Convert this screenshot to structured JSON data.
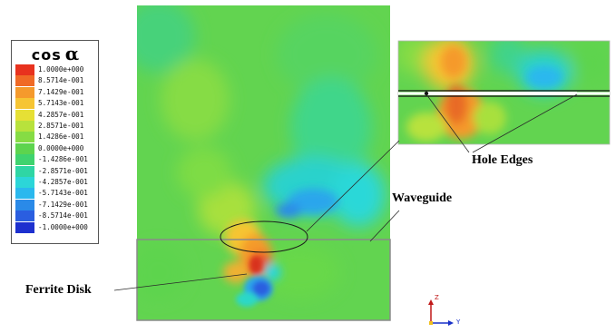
{
  "legend": {
    "title": "cos",
    "title_symbol": "α",
    "entries": [
      {
        "label": "1.0000e+000",
        "color": "#e8321e"
      },
      {
        "label": "8.5714e-001",
        "color": "#f06a26"
      },
      {
        "label": "7.1429e-001",
        "color": "#f59a2c"
      },
      {
        "label": "5.7143e-001",
        "color": "#f6c533"
      },
      {
        "label": "4.2857e-001",
        "color": "#e6e035"
      },
      {
        "label": "2.8571e-001",
        "color": "#b8e23c"
      },
      {
        "label": "1.4286e-001",
        "color": "#86dc44"
      },
      {
        "label": "0.0000e+000",
        "color": "#5dd44e"
      },
      {
        "label": "-1.4286e-001",
        "color": "#3fd36e"
      },
      {
        "label": "-2.8571e-001",
        "color": "#2fd6a4"
      },
      {
        "label": "-4.2857e-001",
        "color": "#2cd6d8"
      },
      {
        "label": "-5.7143e-001",
        "color": "#2ab8ee"
      },
      {
        "label": "-7.1429e-001",
        "color": "#2a8ae8"
      },
      {
        "label": "-8.5714e-001",
        "color": "#2a5ee0"
      },
      {
        "label": "-1.0000e+000",
        "color": "#1d30cf"
      }
    ]
  },
  "annotations": {
    "hole_edges": "Hole Edges",
    "waveguide": "Waveguide",
    "ferrite_disk": "Ferrite Disk"
  },
  "axes": {
    "vertical": "Z",
    "horizontal": "Y"
  },
  "colors": {
    "background_field": "#62d450",
    "waveguide_border": "#8a8a8a",
    "leader_line": "#2a2a2a",
    "axis_z": "#c01818",
    "axis_y": "#1830c8"
  }
}
